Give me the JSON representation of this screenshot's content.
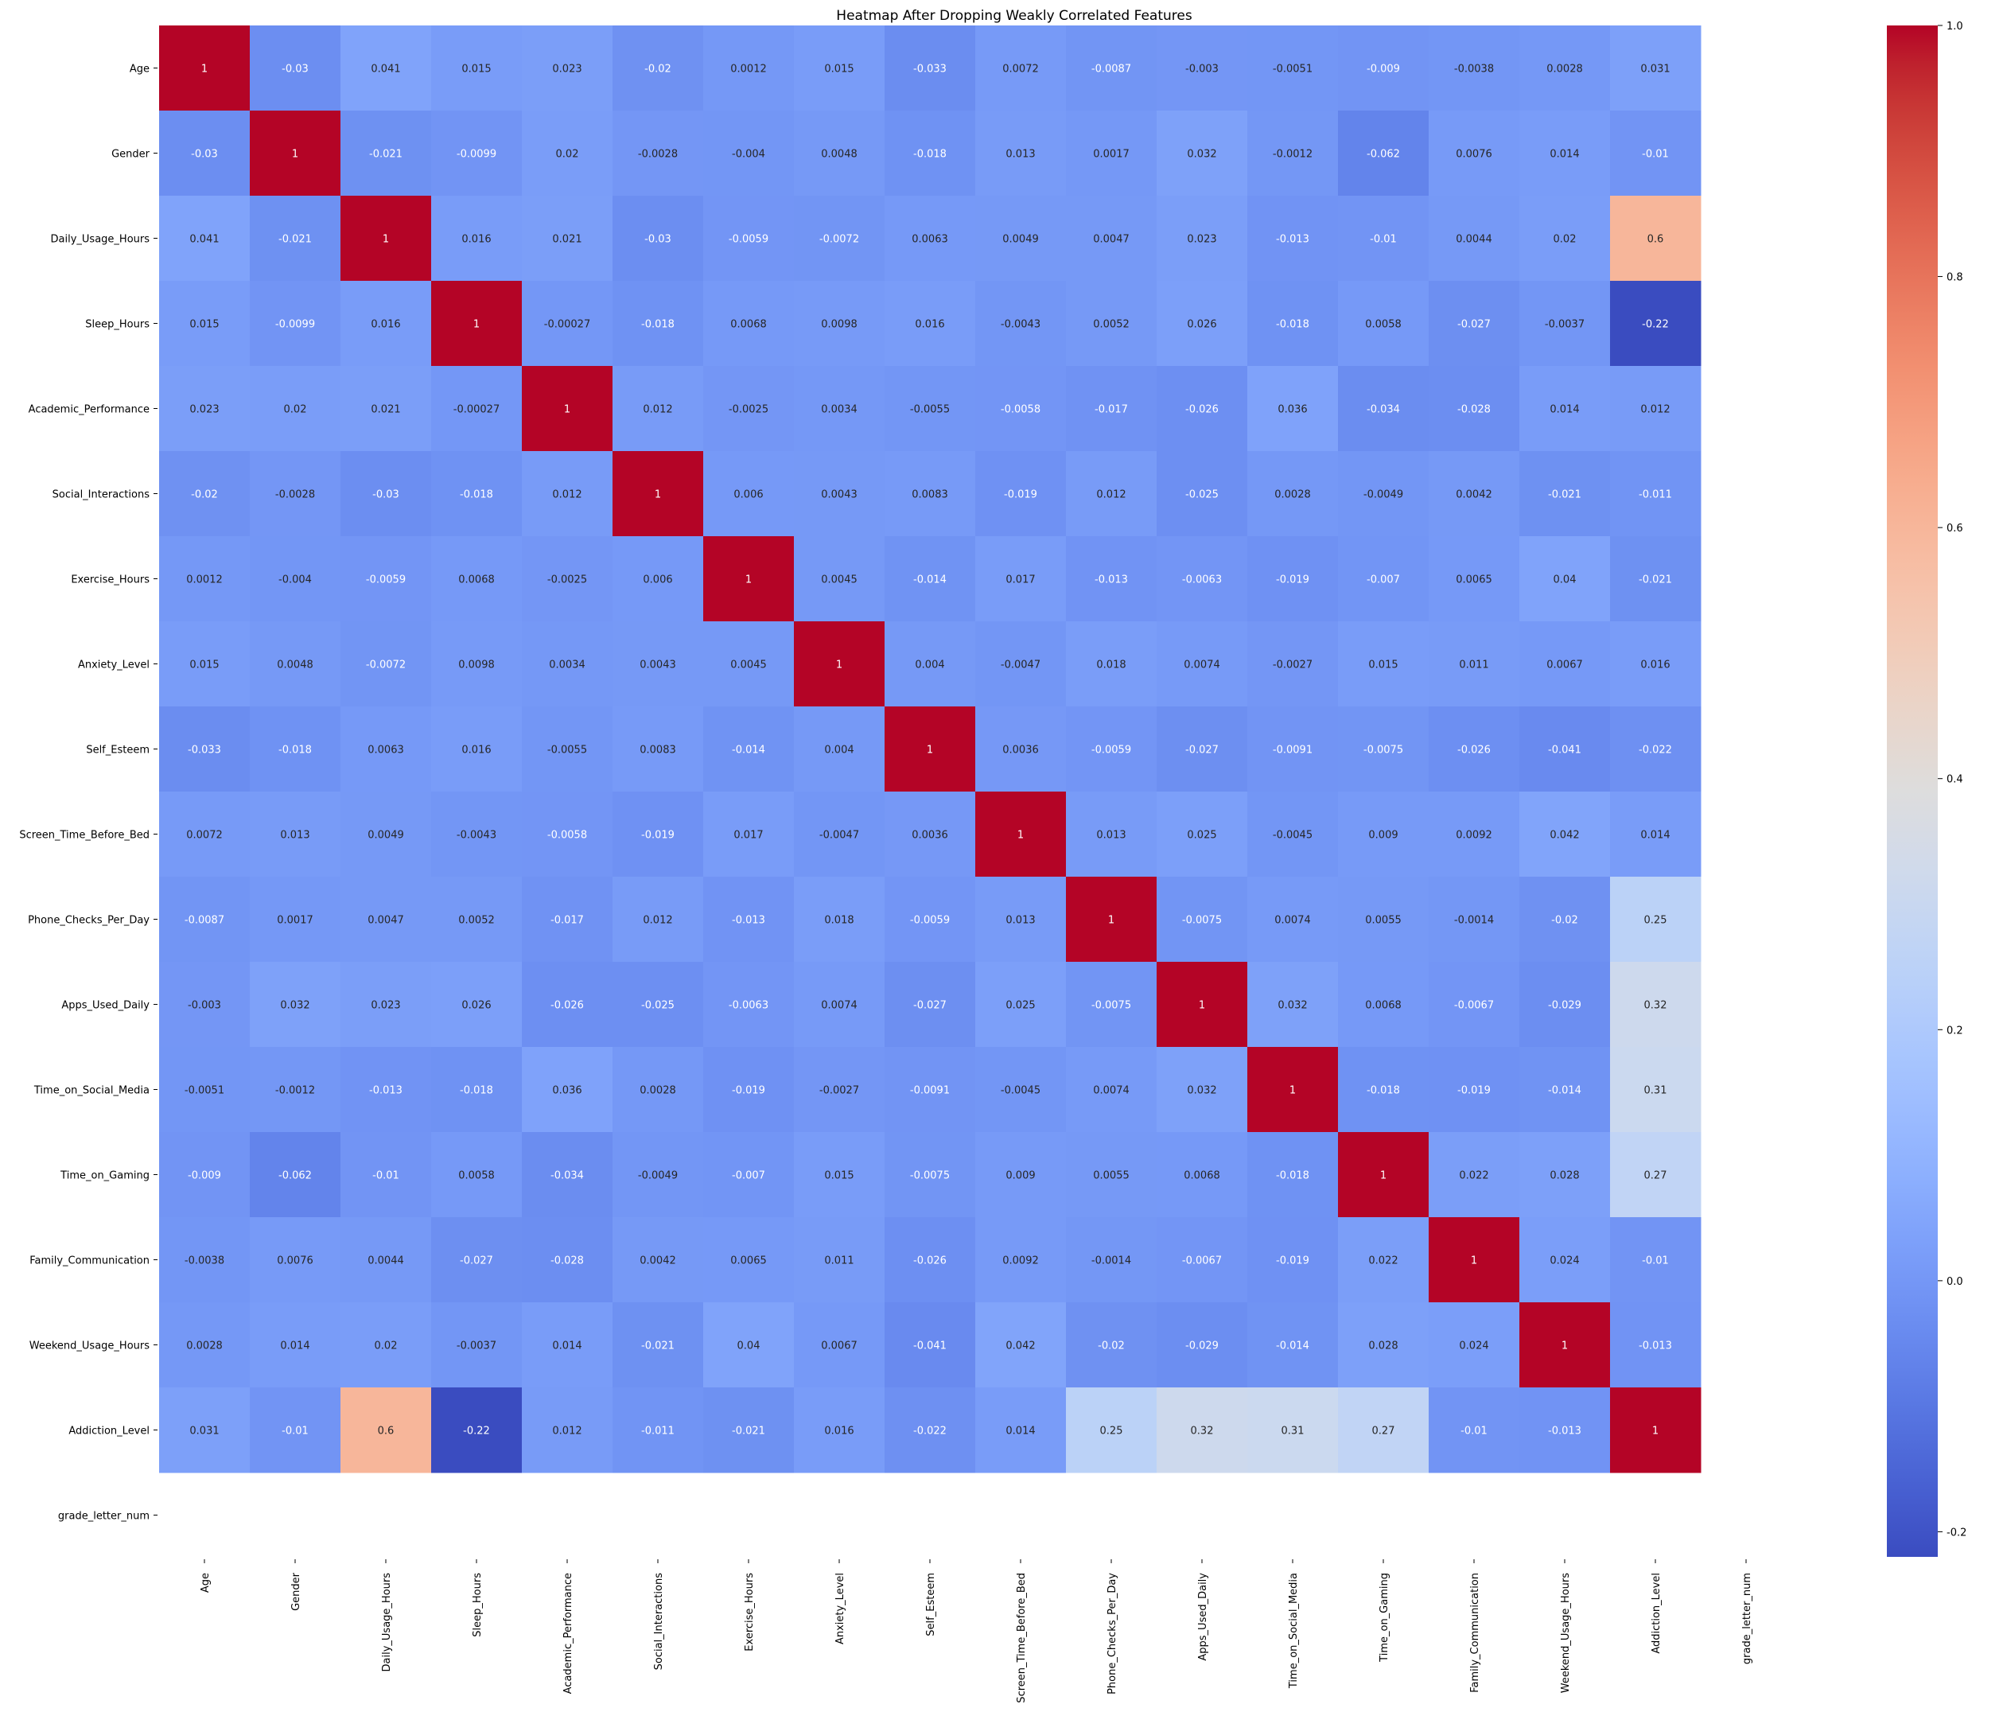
{
  "chart_data": {
    "type": "heatmap",
    "title": "Heatmap After Dropping Weakly Correlated Features",
    "xlabel": "",
    "ylabel": "",
    "labels": [
      "Age",
      "Gender",
      "Daily_Usage_Hours",
      "Sleep_Hours",
      "Academic_Performance",
      "Social_Interactions",
      "Exercise_Hours",
      "Anxiety_Level",
      "Self_Esteem",
      "Screen_Time_Before_Bed",
      "Phone_Checks_Per_Day",
      "Apps_Used_Daily",
      "Time_on_Social_Media",
      "Time_on_Gaming",
      "Family_Communication",
      "Weekend_Usage_Hours",
      "Addiction_Level",
      "grade_letter_num"
    ],
    "matrix": [
      [
        "1",
        "-0.03",
        "0.041",
        "0.015",
        "0.023",
        "-0.02",
        "0.0012",
        "0.015",
        "-0.033",
        "0.0072",
        "-0.0087",
        "-0.003",
        "-0.0051",
        "-0.009",
        "-0.0038",
        "0.0028",
        "0.031",
        null
      ],
      [
        "-0.03",
        "1",
        "-0.021",
        "-0.0099",
        "0.02",
        "-0.0028",
        "-0.004",
        "0.0048",
        "-0.018",
        "0.013",
        "0.0017",
        "0.032",
        "-0.0012",
        "-0.062",
        "0.0076",
        "0.014",
        "-0.01",
        null
      ],
      [
        "0.041",
        "-0.021",
        "1",
        "0.016",
        "0.021",
        "-0.03",
        "-0.0059",
        "-0.0072",
        "0.0063",
        "0.0049",
        "0.0047",
        "0.023",
        "-0.013",
        "-0.01",
        "0.0044",
        "0.02",
        "0.6",
        null
      ],
      [
        "0.015",
        "-0.0099",
        "0.016",
        "1",
        "-0.00027",
        "-0.018",
        "0.0068",
        "0.0098",
        "0.016",
        "-0.0043",
        "0.0052",
        "0.026",
        "-0.018",
        "0.0058",
        "-0.027",
        "-0.0037",
        "-0.22",
        null
      ],
      [
        "0.023",
        "0.02",
        "0.021",
        "-0.00027",
        "1",
        "0.012",
        "-0.0025",
        "0.0034",
        "-0.0055",
        "-0.0058",
        "-0.017",
        "-0.026",
        "0.036",
        "-0.034",
        "-0.028",
        "0.014",
        "0.012",
        null
      ],
      [
        "-0.02",
        "-0.0028",
        "-0.03",
        "-0.018",
        "0.012",
        "1",
        "0.006",
        "0.0043",
        "0.0083",
        "-0.019",
        "0.012",
        "-0.025",
        "0.0028",
        "-0.0049",
        "0.0042",
        "-0.021",
        "-0.011",
        null
      ],
      [
        "0.0012",
        "-0.004",
        "-0.0059",
        "0.0068",
        "-0.0025",
        "0.006",
        "1",
        "0.0045",
        "-0.014",
        "0.017",
        "-0.013",
        "-0.0063",
        "-0.019",
        "-0.007",
        "0.0065",
        "0.04",
        "-0.021",
        null
      ],
      [
        "0.015",
        "0.0048",
        "-0.0072",
        "0.0098",
        "0.0034",
        "0.0043",
        "0.0045",
        "1",
        "0.004",
        "-0.0047",
        "0.018",
        "0.0074",
        "-0.0027",
        "0.015",
        "0.011",
        "0.0067",
        "0.016",
        null
      ],
      [
        "-0.033",
        "-0.018",
        "0.0063",
        "0.016",
        "-0.0055",
        "0.0083",
        "-0.014",
        "0.004",
        "1",
        "0.0036",
        "-0.0059",
        "-0.027",
        "-0.0091",
        "-0.0075",
        "-0.026",
        "-0.041",
        "-0.022",
        null
      ],
      [
        "0.0072",
        "0.013",
        "0.0049",
        "-0.0043",
        "-0.0058",
        "-0.019",
        "0.017",
        "-0.0047",
        "0.0036",
        "1",
        "0.013",
        "0.025",
        "-0.0045",
        "0.009",
        "0.0092",
        "0.042",
        "0.014",
        null
      ],
      [
        "-0.0087",
        "0.0017",
        "0.0047",
        "0.0052",
        "-0.017",
        "0.012",
        "-0.013",
        "0.018",
        "-0.0059",
        "0.013",
        "1",
        "-0.0075",
        "0.0074",
        "0.0055",
        "-0.0014",
        "-0.02",
        "0.25",
        null
      ],
      [
        "-0.003",
        "0.032",
        "0.023",
        "0.026",
        "-0.026",
        "-0.025",
        "-0.0063",
        "0.0074",
        "-0.027",
        "0.025",
        "-0.0075",
        "1",
        "0.032",
        "0.0068",
        "-0.0067",
        "-0.029",
        "0.32",
        null
      ],
      [
        "-0.0051",
        "-0.0012",
        "-0.013",
        "-0.018",
        "0.036",
        "0.0028",
        "-0.019",
        "-0.0027",
        "-0.0091",
        "-0.0045",
        "0.0074",
        "0.032",
        "1",
        "-0.018",
        "-0.019",
        "-0.014",
        "0.31",
        null
      ],
      [
        "-0.009",
        "-0.062",
        "-0.01",
        "0.0058",
        "-0.034",
        "-0.0049",
        "-0.007",
        "0.015",
        "-0.0075",
        "0.009",
        "0.0055",
        "0.0068",
        "-0.018",
        "1",
        "0.022",
        "0.028",
        "0.27",
        null
      ],
      [
        "-0.0038",
        "0.0076",
        "0.0044",
        "-0.027",
        "-0.028",
        "0.0042",
        "0.0065",
        "0.011",
        "-0.026",
        "0.0092",
        "-0.0014",
        "-0.0067",
        "-0.019",
        "0.022",
        "1",
        "0.024",
        "-0.01",
        null
      ],
      [
        "0.0028",
        "0.014",
        "0.02",
        "-0.0037",
        "0.014",
        "-0.021",
        "0.04",
        "0.0067",
        "-0.041",
        "0.042",
        "-0.02",
        "-0.029",
        "-0.014",
        "0.028",
        "0.024",
        "1",
        "-0.013",
        null
      ],
      [
        "0.031",
        "-0.01",
        "0.6",
        "-0.22",
        "0.012",
        "-0.011",
        "-0.021",
        "0.016",
        "-0.022",
        "0.014",
        "0.25",
        "0.32",
        "0.31",
        "0.27",
        "-0.01",
        "-0.013",
        "1",
        null
      ],
      [
        null,
        null,
        null,
        null,
        null,
        null,
        null,
        null,
        null,
        null,
        null,
        null,
        null,
        null,
        null,
        null,
        null,
        null
      ]
    ],
    "colorbar": {
      "colormap": "coolwarm",
      "min": -0.22,
      "max": 1.0,
      "ticks": [
        "1.0",
        "0.8",
        "0.6",
        "0.4",
        "0.2",
        "0.0",
        "-0.2"
      ]
    },
    "grid": false,
    "legend": "none"
  }
}
